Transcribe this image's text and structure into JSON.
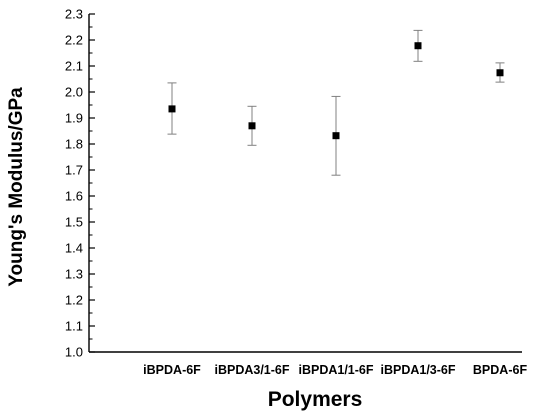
{
  "chart_data": {
    "type": "scatter",
    "title": "",
    "xlabel": "Polymers",
    "ylabel": "Young's Modulus/GPa",
    "categories": [
      "iBPDA-6F",
      "iBPDA3/1-6F",
      "iBPDA1/1-6F",
      "iBPDA1/3-6F",
      "BPDA-6F"
    ],
    "values": [
      1.935,
      1.87,
      1.832,
      2.178,
      2.074
    ],
    "error_lower": [
      1.838,
      1.795,
      1.68,
      2.118,
      2.038
    ],
    "error_upper": [
      2.035,
      1.945,
      1.983,
      2.237,
      2.112
    ],
    "ylim": [
      1.0,
      2.3
    ],
    "yticks": [
      "1.0",
      "1.1",
      "1.2",
      "1.3",
      "1.4",
      "1.5",
      "1.6",
      "1.7",
      "1.8",
      "1.9",
      "2.0",
      "2.1",
      "2.2",
      "2.3"
    ],
    "grid": false,
    "legend": "none",
    "marker": "square",
    "colors": {
      "marker": "#000000",
      "error_bar": "#808080",
      "axis": "#000000"
    }
  }
}
